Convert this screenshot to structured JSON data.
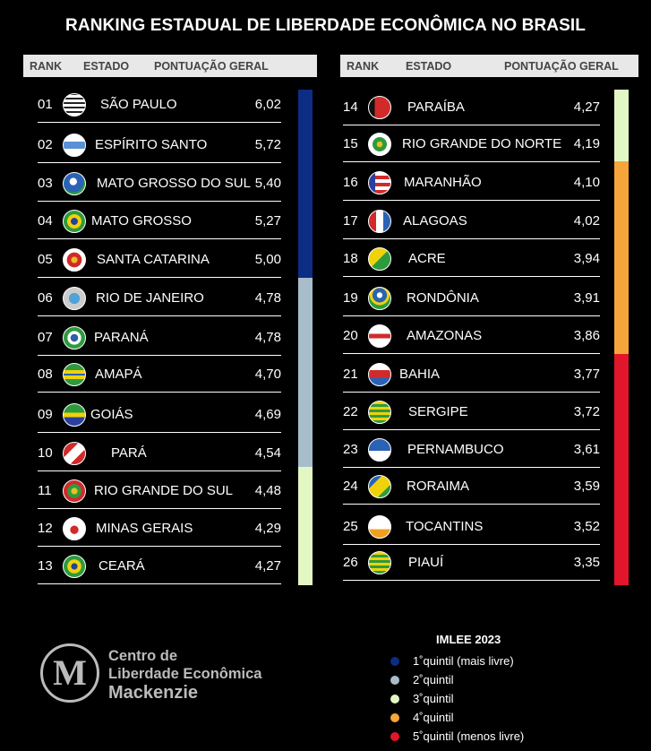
{
  "title": "RANKING ESTADUAL DE LIBERDADE ECONÔMICA NO BRASIL",
  "header": {
    "rank": "RANK",
    "estado": "ESTADO",
    "pontuacao": "PONTUAÇÃO GERAL"
  },
  "chart_data": {
    "type": "table",
    "title": "RANKING ESTADUAL DE LIBERDADE ECONÔMICA NO BRASIL",
    "columns": [
      "RANK",
      "ESTADO",
      "PONTUAÇÃO GERAL"
    ],
    "rows": [
      {
        "rank": "01",
        "state": "SÃO PAULO",
        "score": "6,02",
        "quintile": 1
      },
      {
        "rank": "02",
        "state": "ESPÍRITO SANTO",
        "score": "5,72",
        "quintile": 1
      },
      {
        "rank": "03",
        "state": "MATO GROSSO DO SUL",
        "score": "5,40",
        "quintile": 1
      },
      {
        "rank": "04",
        "state": "MATO GROSSO",
        "score": "5,27",
        "quintile": 1
      },
      {
        "rank": "05",
        "state": "SANTA CATARINA",
        "score": "5,00",
        "quintile": 1
      },
      {
        "rank": "06",
        "state": "RIO DE JANEIRO",
        "score": "4,78",
        "quintile": 2
      },
      {
        "rank": "07",
        "state": "PARANÁ",
        "score": "4,78",
        "quintile": 2
      },
      {
        "rank": "08",
        "state": "AMAPÁ",
        "score": "4,70",
        "quintile": 2
      },
      {
        "rank": "09",
        "state": "GOIÁS",
        "score": "4,69",
        "quintile": 2
      },
      {
        "rank": "10",
        "state": "PARÁ",
        "score": "4,54",
        "quintile": 2
      },
      {
        "rank": "11",
        "state": "RIO GRANDE DO SUL",
        "score": "4,48",
        "quintile": 3
      },
      {
        "rank": "12",
        "state": "MINAS GERAIS",
        "score": "4,29",
        "quintile": 3
      },
      {
        "rank": "13",
        "state": "CEARÁ",
        "score": "4,27",
        "quintile": 3
      },
      {
        "rank": "14",
        "state": "PARAÍBA",
        "score": "4,27",
        "quintile": 3
      },
      {
        "rank": "15",
        "state": "RIO GRANDE DO NORTE",
        "score": "4,19",
        "quintile": 3
      },
      {
        "rank": "16",
        "state": "MARANHÃO",
        "score": "4,10",
        "quintile": 4
      },
      {
        "rank": "17",
        "state": "ALAGOAS",
        "score": "4,02",
        "quintile": 4
      },
      {
        "rank": "18",
        "state": "ACRE",
        "score": "3,94",
        "quintile": 4
      },
      {
        "rank": "19",
        "state": "RONDÔNIA",
        "score": "3,91",
        "quintile": 4
      },
      {
        "rank": "20",
        "state": "AMAZONAS",
        "score": "3,86",
        "quintile": 4
      },
      {
        "rank": "21",
        "state": "BAHIA",
        "score": "3,77",
        "quintile": 5
      },
      {
        "rank": "22",
        "state": "SERGIPE",
        "score": "3,72",
        "quintile": 5
      },
      {
        "rank": "23",
        "state": "PERNAMBUCO",
        "score": "3,61",
        "quintile": 5
      },
      {
        "rank": "24",
        "state": "RORAIMA",
        "score": "3,59",
        "quintile": 5
      },
      {
        "rank": "25",
        "state": "TOCANTINS",
        "score": "3,52",
        "quintile": 5
      },
      {
        "rank": "26",
        "state": "PIAUÍ",
        "score": "3,35",
        "quintile": 5
      }
    ],
    "quintile_colors": {
      "1": "#0d2c83",
      "2": "#a8bdcb",
      "3": "#e3f7c4",
      "4": "#f6a53a",
      "5": "#e2162b"
    }
  },
  "legend": {
    "title": "IMLEE 2023",
    "items": [
      {
        "label": "1˚quintil (mais livre)",
        "color": "#0d2c83"
      },
      {
        "label": "2˚quintil",
        "color": "#a8bdcb"
      },
      {
        "label": "3˚quintil",
        "color": "#e3f7c4"
      },
      {
        "label": "4˚quintil",
        "color": "#f6a53a"
      },
      {
        "label": "5˚quintil (menos livre)",
        "color": "#e2162b"
      }
    ]
  },
  "logo": {
    "letter": "M",
    "line1": "Centro de",
    "line2": "Liberdade Econômica",
    "line3": "Mackenzie"
  }
}
